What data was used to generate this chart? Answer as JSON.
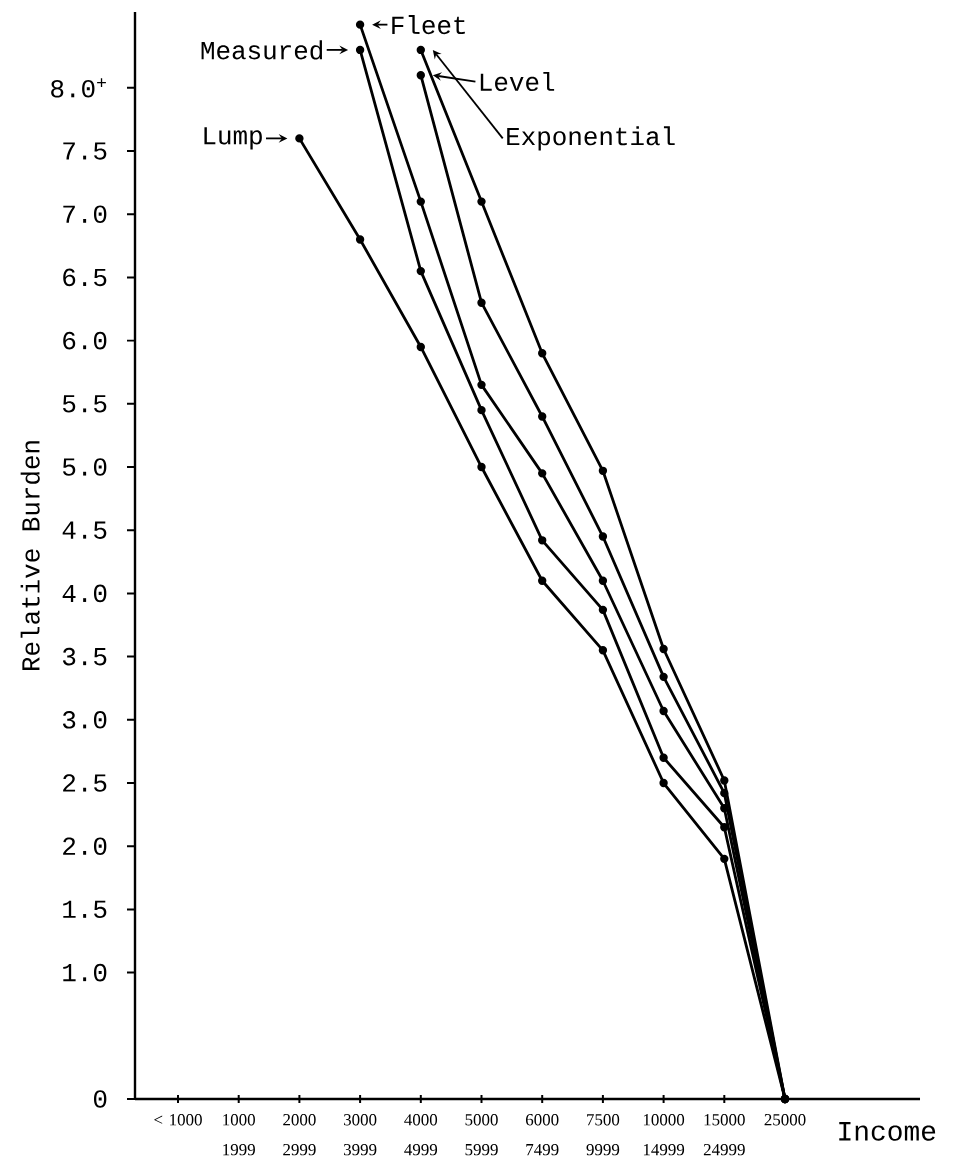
{
  "chart_data": {
    "type": "line",
    "xlabel": "Income",
    "ylabel": "Relative Burden",
    "categories": [
      "< 1000",
      "1000 1999",
      "2000 2999",
      "3000 3999",
      "4000 4999",
      "5000 5999",
      "6000 7499",
      "7500 9999",
      "10000 14999",
      "15000 24999",
      "25000"
    ],
    "series": [
      {
        "name": "Lump",
        "color": "#000000",
        "values": [
          null,
          null,
          7.6,
          6.8,
          5.95,
          5.0,
          4.1,
          3.55,
          2.5,
          1.9,
          0
        ]
      },
      {
        "name": "Measured",
        "color": "#000000",
        "values": [
          null,
          null,
          null,
          8.3,
          6.55,
          5.45,
          4.42,
          3.87,
          2.7,
          2.15,
          0
        ]
      },
      {
        "name": "Fleet",
        "color": "#000000",
        "values": [
          null,
          null,
          null,
          8.5,
          7.1,
          5.65,
          4.95,
          4.1,
          3.07,
          2.3,
          0
        ]
      },
      {
        "name": "Level",
        "color": "#000000",
        "values": [
          null,
          null,
          null,
          null,
          8.1,
          6.3,
          5.4,
          4.45,
          3.34,
          2.42,
          0
        ]
      },
      {
        "name": "Exponential",
        "color": "#000000",
        "values": [
          null,
          null,
          null,
          null,
          8.3,
          7.1,
          5.9,
          4.97,
          3.56,
          2.52,
          0
        ]
      }
    ],
    "ylim": [
      0,
      8.6
    ],
    "yticks": [
      0,
      {
        "value": 1,
        "label": "1.0"
      },
      1.5,
      {
        "value": 2,
        "label": "2.0"
      },
      2.5,
      {
        "value": 3,
        "label": "3.0"
      },
      3.5,
      {
        "value": 4,
        "label": "4.0"
      },
      4.5,
      {
        "value": 5,
        "label": "5.0"
      },
      5.5,
      {
        "value": 6,
        "label": "6.0"
      },
      6.5,
      {
        "value": 7,
        "label": "7.0"
      },
      7.5,
      {
        "value": 8,
        "label": "8.0$^{+}$"
      }
    ],
    "marker": "circle",
    "legend": "top"
  }
}
